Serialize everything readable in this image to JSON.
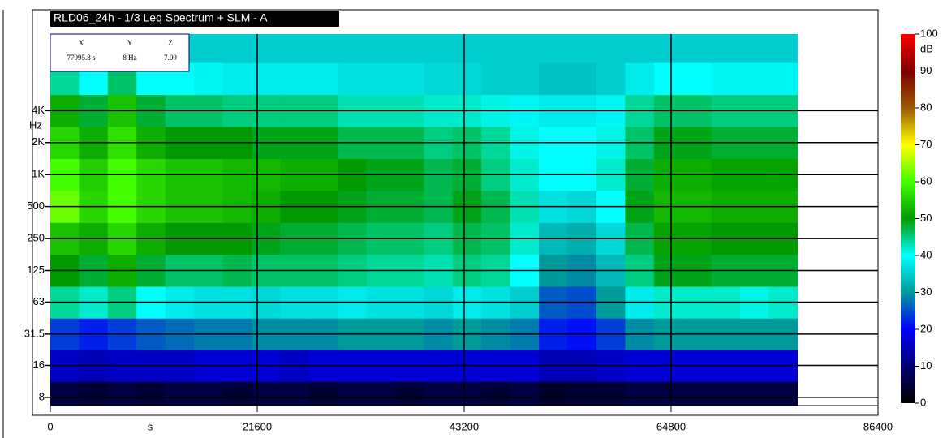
{
  "chart_data": {
    "type": "heatmap",
    "title": "RLD06_24h - 1/3 Leq Spectrum + SLM - A",
    "x_label": "s",
    "y_label": "Hz",
    "colorbar_label": "dB",
    "cursor": {
      "labels": [
        "X",
        "Y",
        "Z"
      ],
      "values": [
        "77995.8 s",
        "8 Hz",
        "7.09"
      ]
    },
    "xlim": [
      0,
      86400
    ],
    "xticks": [
      0,
      21600,
      43200,
      64800,
      86400
    ],
    "ylim": [
      6.7,
      21000
    ],
    "y_log": true,
    "yticks": [
      8,
      16,
      31.5,
      63,
      125,
      250,
      500,
      {
        "value": 1000,
        "label": "1K"
      },
      {
        "value": 2000,
        "label": "2K"
      },
      {
        "value": 4000,
        "label": "4K"
      }
    ],
    "grid": true,
    "clim": [
      0,
      100
    ],
    "cticks": [
      0,
      10,
      20,
      30,
      40,
      50,
      60,
      70,
      80,
      90,
      100
    ],
    "colorscale": [
      "#000000",
      "#00006e",
      "#0000ff",
      "#009a9a",
      "#00ffff",
      "#009a00",
      "#44ff00",
      "#ffff00",
      "#9a5a00",
      "#7a0000",
      "#ff0000"
    ],
    "x": [
      1500,
      4500,
      7500,
      10500,
      13500,
      16500,
      19500,
      22500,
      25500,
      28500,
      31500,
      34500,
      37500,
      40500,
      43500,
      46500,
      49500,
      52500,
      55500,
      58500,
      61500,
      64500,
      67500,
      70500,
      73500,
      76500
    ],
    "y": [
      8,
      16,
      31.5,
      63,
      125,
      250,
      500,
      1000,
      2000,
      4000,
      8000,
      16000
    ],
    "z": [
      [
        6,
        5,
        6,
        5,
        6,
        6,
        5,
        6,
        6,
        5,
        6,
        6,
        5,
        6,
        6,
        5,
        6,
        4,
        5,
        5,
        6,
        6,
        6,
        6,
        6,
        6
      ],
      [
        16,
        15,
        16,
        16,
        16,
        17,
        17,
        17,
        16,
        17,
        17,
        17,
        17,
        17,
        17,
        17,
        17,
        15,
        15,
        16,
        17,
        17,
        17,
        17,
        17,
        17
      ],
      [
        24,
        22,
        24,
        26,
        27,
        28,
        28,
        29,
        29,
        29,
        30,
        30,
        30,
        29,
        30,
        29,
        28,
        22,
        21,
        24,
        29,
        30,
        30,
        30,
        30,
        30
      ],
      [
        44,
        42,
        45,
        40,
        38,
        37,
        37,
        36,
        37,
        37,
        38,
        37,
        37,
        36,
        38,
        37,
        35,
        26,
        25,
        30,
        38,
        42,
        42,
        42,
        41,
        42
      ],
      [
        50,
        48,
        52,
        48,
        46,
        46,
        47,
        46,
        46,
        46,
        45,
        44,
        44,
        43,
        45,
        44,
        40,
        30,
        29,
        33,
        45,
        49,
        49,
        48,
        48,
        48
      ],
      [
        54,
        52,
        56,
        52,
        50,
        50,
        50,
        49,
        48,
        48,
        47,
        46,
        46,
        45,
        47,
        46,
        42,
        33,
        32,
        36,
        47,
        51,
        51,
        50,
        50,
        50
      ],
      [
        62,
        56,
        60,
        56,
        54,
        54,
        53,
        52,
        50,
        50,
        49,
        48,
        48,
        47,
        49,
        47,
        43,
        37,
        36,
        40,
        49,
        53,
        53,
        52,
        52,
        52
      ],
      [
        60,
        55,
        60,
        56,
        54,
        54,
        53,
        53,
        52,
        52,
        50,
        49,
        49,
        47,
        48,
        45,
        42,
        40,
        40,
        42,
        48,
        52,
        52,
        51,
        51,
        51
      ],
      [
        56,
        52,
        57,
        52,
        50,
        50,
        50,
        49,
        49,
        49,
        47,
        47,
        47,
        45,
        46,
        44,
        41,
        40,
        40,
        41,
        46,
        49,
        49,
        48,
        48,
        48
      ],
      [
        52,
        48,
        54,
        48,
        46,
        46,
        45,
        45,
        45,
        45,
        43,
        43,
        43,
        42,
        42,
        41,
        39,
        38,
        38,
        39,
        44,
        46,
        46,
        45,
        45,
        45
      ],
      [
        44,
        40,
        46,
        40,
        40,
        39,
        38,
        38,
        38,
        38,
        37,
        37,
        37,
        36,
        36,
        35,
        35,
        34,
        34,
        35,
        38,
        40,
        40,
        39,
        39,
        39
      ],
      [
        36,
        35,
        36,
        35,
        35,
        35,
        35,
        35,
        35,
        35,
        35,
        35,
        35,
        35,
        35,
        35,
        35,
        35,
        35,
        35,
        35,
        35,
        35,
        35,
        35,
        35
      ]
    ]
  }
}
